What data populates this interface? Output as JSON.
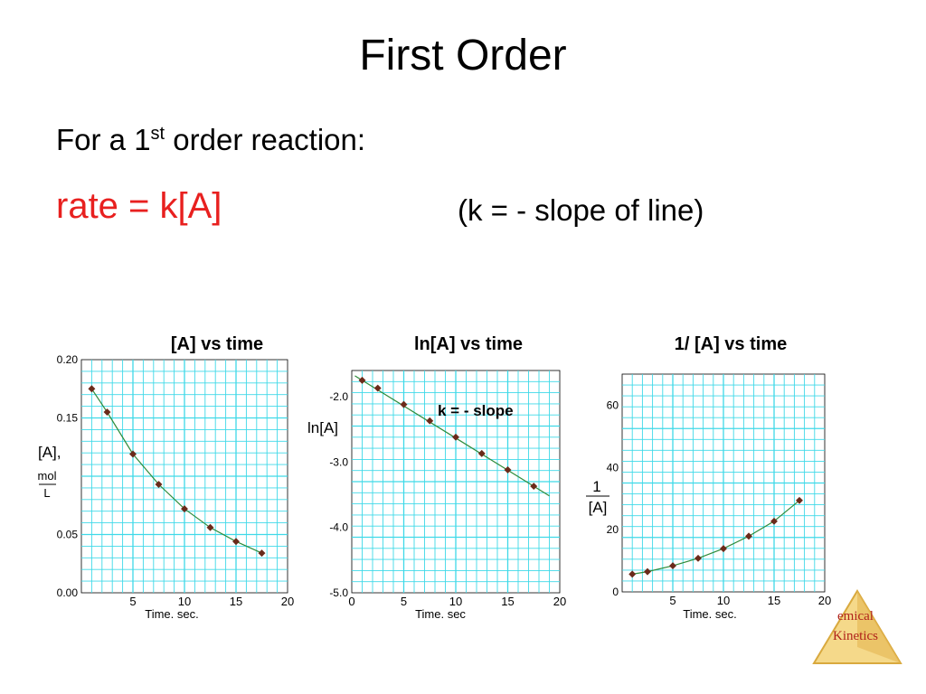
{
  "slide": {
    "title": "First Order",
    "intro_prefix": "For a 1",
    "intro_sup": "st",
    "intro_suffix": " order reaction:",
    "rate_law": "rate = k[A]",
    "slope_note": "(k = - slope of line)"
  },
  "logo": {
    "line1": "emical",
    "line2": "Kinetics",
    "colors": {
      "fill": "#f5d98a",
      "shade": "#d9a93e",
      "text": "#b0221a"
    }
  },
  "colors": {
    "grid": "#3fd9e8",
    "line": "#2e8b3a",
    "marker": "#6b2a1a",
    "title_red": "#e8201f"
  },
  "chart_data": [
    {
      "type": "line",
      "title": "[A]  vs time",
      "xlabel": "Time. sec.",
      "ylabel": "[A],",
      "ylabel_unit_num": "mol",
      "ylabel_unit_den": "L",
      "xlim": [
        0,
        20
      ],
      "ylim": [
        0,
        0.2
      ],
      "x_ticks": [
        "5",
        "10",
        "15",
        "20"
      ],
      "y_ticks": [
        "0.20",
        "0.15",
        "0.05",
        "0.00"
      ],
      "series": [
        {
          "x": [
            1,
            2.5,
            5,
            7.5,
            10,
            12.5,
            15,
            17.5
          ],
          "y": [
            0.175,
            0.155,
            0.119,
            0.093,
            0.072,
            0.056,
            0.044,
            0.034
          ]
        }
      ]
    },
    {
      "type": "line",
      "title": "ln[A] vs time",
      "xlabel": "Time. sec",
      "ylabel": "ln[A]",
      "annotation": "k = - slope",
      "xlim": [
        0,
        20
      ],
      "ylim": [
        -5,
        -1.6
      ],
      "x_ticks": [
        "0",
        "5",
        "10",
        "15",
        "20"
      ],
      "y_ticks": [
        "-2.0",
        "-3.0",
        "-4.0",
        "-5.0"
      ],
      "series": [
        {
          "x": [
            1,
            2.5,
            5,
            7.5,
            10,
            12.5,
            15,
            17.5
          ],
          "y": [
            -1.75,
            -1.87,
            -2.12,
            -2.37,
            -2.62,
            -2.87,
            -3.12,
            -3.37
          ]
        }
      ]
    },
    {
      "type": "line",
      "title": "1/ [A] vs time",
      "xlabel": "Time. sec.",
      "ylabel_num": "1",
      "ylabel_den": "[A]",
      "xlim": [
        0,
        20
      ],
      "ylim": [
        0,
        70
      ],
      "x_ticks": [
        "5",
        "10",
        "15",
        "20"
      ],
      "y_ticks": [
        "60",
        "40",
        "20",
        "0"
      ],
      "series": [
        {
          "x": [
            1,
            2.5,
            5,
            7.5,
            10,
            12.5,
            15,
            17.5
          ],
          "y": [
            5.7,
            6.5,
            8.4,
            10.8,
            13.9,
            17.9,
            22.7,
            29.4
          ]
        }
      ]
    }
  ]
}
